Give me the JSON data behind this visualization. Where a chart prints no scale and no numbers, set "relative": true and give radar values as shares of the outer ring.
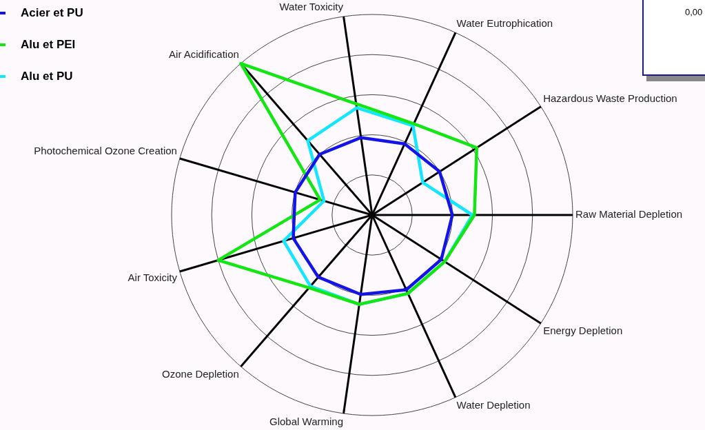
{
  "chart_data": {
    "type": "radar",
    "relative": true,
    "grid": true,
    "legend": "top left",
    "categories": [
      "Water Toxicity",
      "Water Eutrophication",
      "Hazardous Waste Production",
      "Raw Material Depletion",
      "Energy Depletion",
      "Water Depletion",
      "Global Warming",
      "Ozone Depletion",
      "Air Toxicity",
      "Photochemical Ozone Creation",
      "Air Acidification"
    ],
    "series": [
      {
        "name": "Acier et PU",
        "color": "#1414e6",
        "values": [
          0.39,
          0.39,
          0.4,
          0.4,
          0.41,
          0.41,
          0.4,
          0.41,
          0.41,
          0.4,
          0.4
        ]
      },
      {
        "name": "Alu et PEI",
        "color": "#14e614",
        "values": [
          0.56,
          0.5,
          0.62,
          0.51,
          0.43,
          0.43,
          0.45,
          0.48,
          0.8,
          0.27,
          1.0
        ]
      },
      {
        "name": "Alu et PU",
        "color": "#14e6ff",
        "values": [
          0.54,
          0.49,
          0.3,
          0.5,
          0.43,
          0.43,
          0.45,
          0.47,
          0.46,
          0.25,
          0.49
        ]
      }
    ],
    "annotations": [
      "0,00"
    ]
  }
}
